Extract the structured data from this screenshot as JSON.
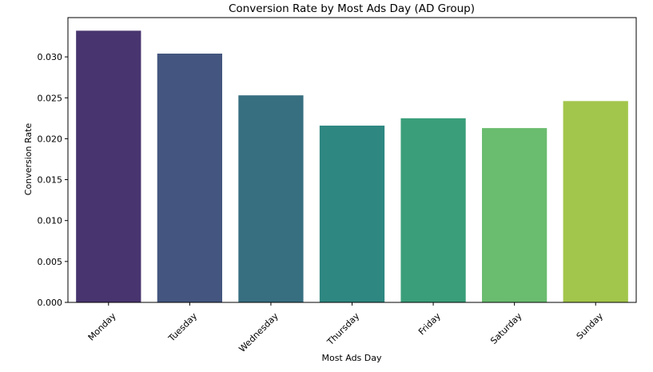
{
  "chart_data": {
    "type": "bar",
    "title": "Conversion Rate by Most Ads Day (AD Group)",
    "xlabel": "Most Ads Day",
    "ylabel": "Conversion Rate",
    "categories": [
      "Monday",
      "Tuesday",
      "Wednesday",
      "Thursday",
      "Friday",
      "Saturday",
      "Sunday"
    ],
    "values": [
      0.0332,
      0.0304,
      0.0253,
      0.0216,
      0.0225,
      0.0213,
      0.0246
    ],
    "colors": [
      "#48356f",
      "#44567f",
      "#376f80",
      "#2e8781",
      "#3a9e7a",
      "#6abc6f",
      "#a2c54b"
    ],
    "ylim": [
      0,
      0.0348
    ],
    "yticks": [
      "0.000",
      "0.005",
      "0.010",
      "0.015",
      "0.020",
      "0.025",
      "0.030"
    ],
    "x_tick_rotation_deg": 45,
    "grid": false,
    "legend": "none"
  }
}
